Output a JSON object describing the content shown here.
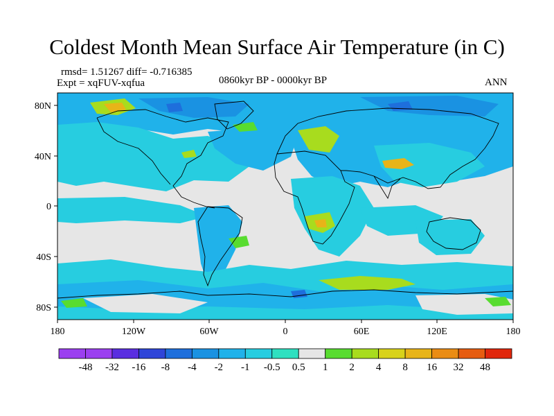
{
  "title": "Coldest Month Mean Surface Air Temperature (in C)",
  "stats": "rmsd= 1.51267 diff= -0.716385",
  "experiment": "Expt = xqFUV-xqfua",
  "period": "0860kyr BP - 0000kyr BP",
  "season": "ANN",
  "lat_labels": [
    "80N",
    "40N",
    "0",
    "40S",
    "80S"
  ],
  "lon_labels": [
    "180",
    "120W",
    "60W",
    "0",
    "60E",
    "120E",
    "180"
  ],
  "colorbar": {
    "colors": [
      "#9b3ff0",
      "#5a2ee0",
      "#2f45d8",
      "#1e6fdc",
      "#1a92e2",
      "#20b2ea",
      "#27cde0",
      "#2fe0c0",
      "#e6e6e6",
      "#58dc30",
      "#a8dc1e",
      "#d8d21a",
      "#e8b418",
      "#ea8c14",
      "#e65c10",
      "#e0260c"
    ],
    "labels": [
      "-48",
      "-32",
      "-16",
      "-8",
      "-4",
      "-2",
      "-1",
      "-0.5",
      "0.5",
      "1",
      "2",
      "4",
      "8",
      "16",
      "32",
      "48"
    ]
  }
}
